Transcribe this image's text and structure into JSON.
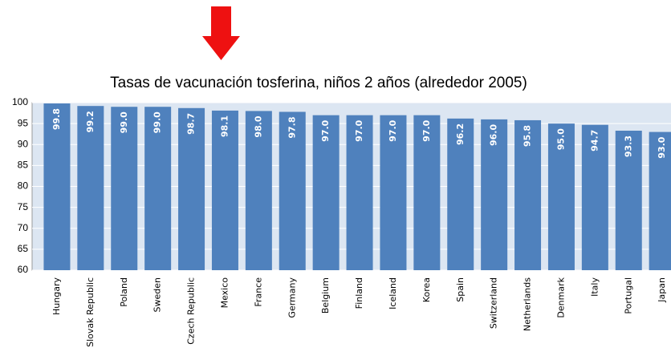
{
  "chart_data": {
    "type": "bar",
    "title": "Tasas de vacunación tosferina, niños 2 años (alrededor 2005)",
    "categories": [
      "Hungary",
      "Slovak Republic",
      "Poland",
      "Sweden",
      "Czech Republic",
      "Mexico",
      "France",
      "Germany",
      "Belgium",
      "Finland",
      "Iceland",
      "Korea",
      "Spain",
      "Switzerland",
      "Netherlands",
      "Denmark",
      "Italy",
      "Portugal",
      "Japan"
    ],
    "values": [
      99.8,
      99.2,
      99.0,
      99.0,
      98.7,
      98.1,
      98.0,
      97.8,
      97.0,
      97.0,
      97.0,
      97.0,
      96.2,
      96.0,
      95.8,
      95.0,
      94.7,
      93.3,
      93.0
    ],
    "value_labels": [
      "99.8",
      "99.2",
      "99.0",
      "99.0",
      "98.7",
      "98.1",
      "98.0",
      "97.8",
      "97.0",
      "97.0",
      "97.0",
      "97.0",
      "96.2",
      "96.0",
      "95.8",
      "95.0",
      "94.7",
      "93.3",
      "93.0"
    ],
    "color": "#4f81bd",
    "ylim": [
      60,
      100
    ],
    "yticks": [
      60,
      65,
      70,
      75,
      80,
      85,
      90,
      95,
      100
    ],
    "grid": true
  }
}
